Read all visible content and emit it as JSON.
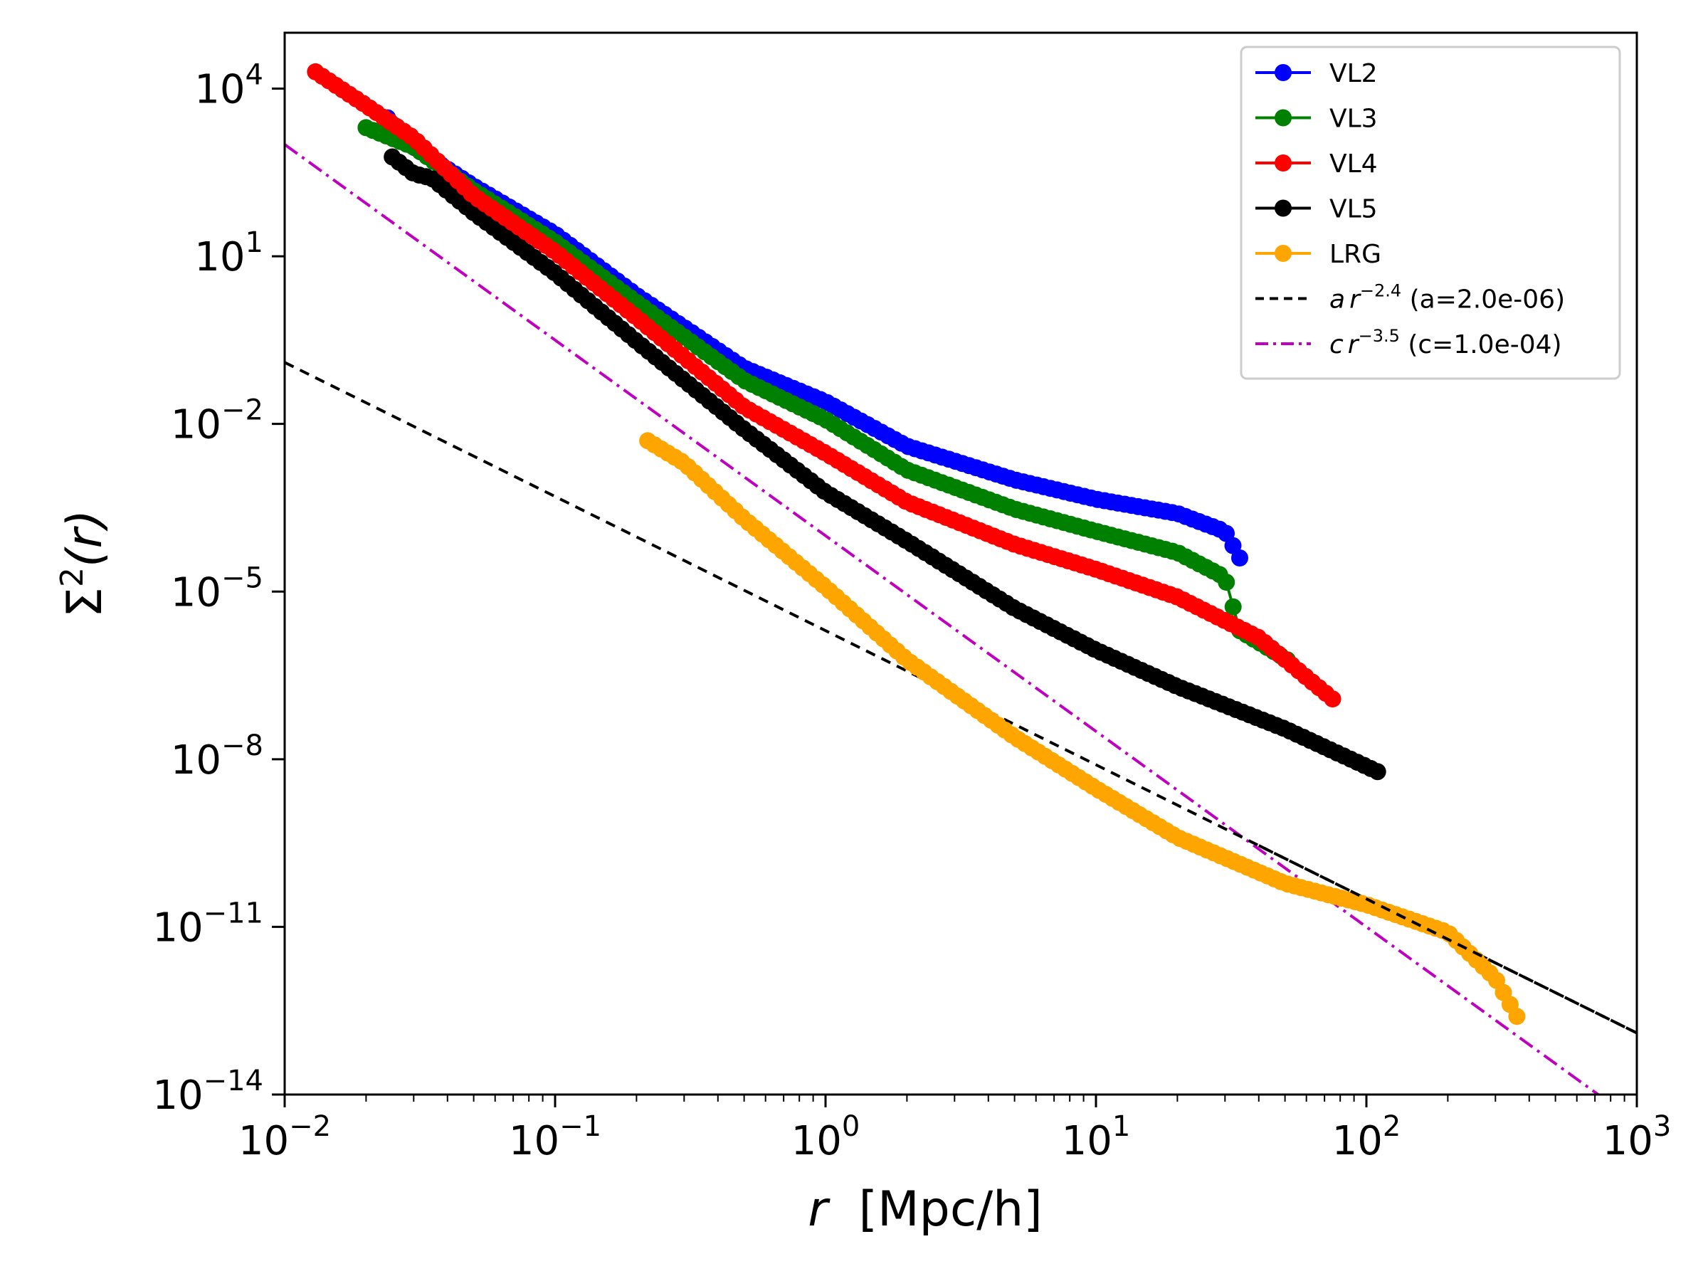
{
  "chart_data": {
    "type": "scatter",
    "x_scale": "log",
    "y_scale": "log",
    "xlim": [
      0.01,
      1000
    ],
    "ylim": [
      1e-14,
      100000.0
    ],
    "xlabel": {
      "var": "r",
      "units": "[Mpc/h]",
      "text": "r  [Mpc/h]"
    },
    "ylabel": {
      "text": "Σ2(r)",
      "base": "Σ",
      "sup": "2",
      "arg": "(r)"
    },
    "x_ticks": [
      {
        "value": 0.01,
        "base": "10",
        "exp": "−2"
      },
      {
        "value": 0.1,
        "base": "10",
        "exp": "−1"
      },
      {
        "value": 1,
        "base": "10",
        "exp": "0"
      },
      {
        "value": 10,
        "base": "10",
        "exp": "1"
      },
      {
        "value": 100,
        "base": "10",
        "exp": "2"
      },
      {
        "value": 1000,
        "base": "10",
        "exp": "3"
      }
    ],
    "y_ticks": [
      {
        "value": 1e-14,
        "base": "10",
        "exp": "−14"
      },
      {
        "value": 1e-11,
        "base": "10",
        "exp": "−11"
      },
      {
        "value": 1e-08,
        "base": "10",
        "exp": "−8"
      },
      {
        "value": 1e-05,
        "base": "10",
        "exp": "−5"
      },
      {
        "value": 0.01,
        "base": "10",
        "exp": "−2"
      },
      {
        "value": 10,
        "base": "10",
        "exp": "1"
      },
      {
        "value": 10000,
        "base": "10",
        "exp": "4"
      }
    ],
    "legend_position": "top-right",
    "series": [
      {
        "name": "VL2",
        "color": "#0000ff",
        "kind": "markers",
        "x_range": [
          0.024,
          34
        ],
        "points": [
          [
            0.024,
            3000
          ],
          [
            0.03,
            900
          ],
          [
            0.05,
            180
          ],
          [
            0.1,
            25
          ],
          [
            0.2,
            2
          ],
          [
            0.5,
            0.1
          ],
          [
            1.0,
            0.025
          ],
          [
            2,
            0.004
          ],
          [
            5,
            0.001
          ],
          [
            10,
            0.00045
          ],
          [
            20,
            0.00025
          ],
          [
            30,
            0.00012
          ],
          [
            34,
            4e-05
          ]
        ]
      },
      {
        "name": "VL3",
        "color": "#008000",
        "kind": "markers",
        "x_range": [
          0.02,
          51
        ],
        "points": [
          [
            0.02,
            2000
          ],
          [
            0.03,
            900
          ],
          [
            0.05,
            150
          ],
          [
            0.1,
            18
          ],
          [
            0.2,
            1.5
          ],
          [
            0.5,
            0.06
          ],
          [
            1.0,
            0.012
          ],
          [
            2,
            0.0015
          ],
          [
            5,
            0.0003
          ],
          [
            10,
            0.00012
          ],
          [
            20,
            5e-05
          ],
          [
            30,
            1.8e-05
          ],
          [
            34,
            2e-06
          ],
          [
            51,
            6e-07
          ]
        ]
      },
      {
        "name": "VL4",
        "color": "#ff0000",
        "kind": "markers",
        "x_range": [
          0.013,
          75
        ],
        "points": [
          [
            0.013,
            20000
          ],
          [
            0.02,
            5000
          ],
          [
            0.03,
            1300
          ],
          [
            0.05,
            120
          ],
          [
            0.1,
            12
          ],
          [
            0.2,
            0.8
          ],
          [
            0.5,
            0.02
          ],
          [
            1.0,
            0.003
          ],
          [
            2,
            0.0004
          ],
          [
            5,
            7e-05
          ],
          [
            10,
            2.5e-05
          ],
          [
            20,
            8e-06
          ],
          [
            40,
            1.5e-06
          ],
          [
            75,
            1.2e-07
          ]
        ]
      },
      {
        "name": "VL5",
        "color": "#000000",
        "kind": "markers",
        "x_range": [
          0.025,
          110
        ],
        "points": [
          [
            0.025,
            600
          ],
          [
            0.03,
            300
          ],
          [
            0.035,
            250
          ],
          [
            0.05,
            60
          ],
          [
            0.1,
            5
          ],
          [
            0.2,
            0.3
          ],
          [
            0.5,
            0.008
          ],
          [
            1.0,
            0.0006
          ],
          [
            2,
            8e-05
          ],
          [
            5,
            5e-06
          ],
          [
            10,
            9e-07
          ],
          [
            20,
            2e-07
          ],
          [
            50,
            3.5e-08
          ],
          [
            110,
            6e-09
          ]
        ]
      },
      {
        "name": "LRG",
        "color": "#ffa500",
        "kind": "markers",
        "x_range": [
          0.22,
          360
        ],
        "points": [
          [
            0.22,
            0.005
          ],
          [
            0.3,
            0.002
          ],
          [
            0.5,
            0.0002
          ],
          [
            1.0,
            1.2e-05
          ],
          [
            2,
            6e-07
          ],
          [
            5,
            2.5e-08
          ],
          [
            10,
            3e-09
          ],
          [
            20,
            4e-10
          ],
          [
            50,
            6e-11
          ],
          [
            100,
            2.5e-11
          ],
          [
            200,
            8e-12
          ],
          [
            300,
            1.2e-12
          ],
          [
            360,
            2.5e-13
          ]
        ]
      },
      {
        "name": "a r^-2.4 (a=2.0e-06)",
        "color": "#000000",
        "kind": "powerlaw",
        "coef": 2e-06,
        "exponent": -2.4,
        "dash": "14,10"
      },
      {
        "name": "c r^-3.5 (c=1.0e-04)",
        "color": "#bf00bf",
        "kind": "powerlaw",
        "coef": 0.0001,
        "exponent": -3.5,
        "dash": "22,8,4,8"
      }
    ],
    "legend": [
      {
        "label": "VL2",
        "color": "#0000ff",
        "style": "marker-line"
      },
      {
        "label": "VL3",
        "color": "#008000",
        "style": "marker-line"
      },
      {
        "label": "VL4",
        "color": "#ff0000",
        "style": "marker-line"
      },
      {
        "label": "VL5",
        "color": "#000000",
        "style": "marker-line"
      },
      {
        "label": "LRG",
        "color": "#ffa500",
        "style": "marker-line"
      },
      {
        "label": "a r^-2.4 (a=2.0e-06)",
        "var": "a",
        "r": "r",
        "exp": "−2.4",
        "param": " (a=2.0e-06)",
        "color": "#000000",
        "style": "dash"
      },
      {
        "label": "c r^-3.5 (c=1.0e-04)",
        "var": "c",
        "r": "r",
        "exp": "−3.5",
        "param": " (c=1.0e-04)",
        "color": "#bf00bf",
        "style": "dashdot"
      }
    ]
  }
}
